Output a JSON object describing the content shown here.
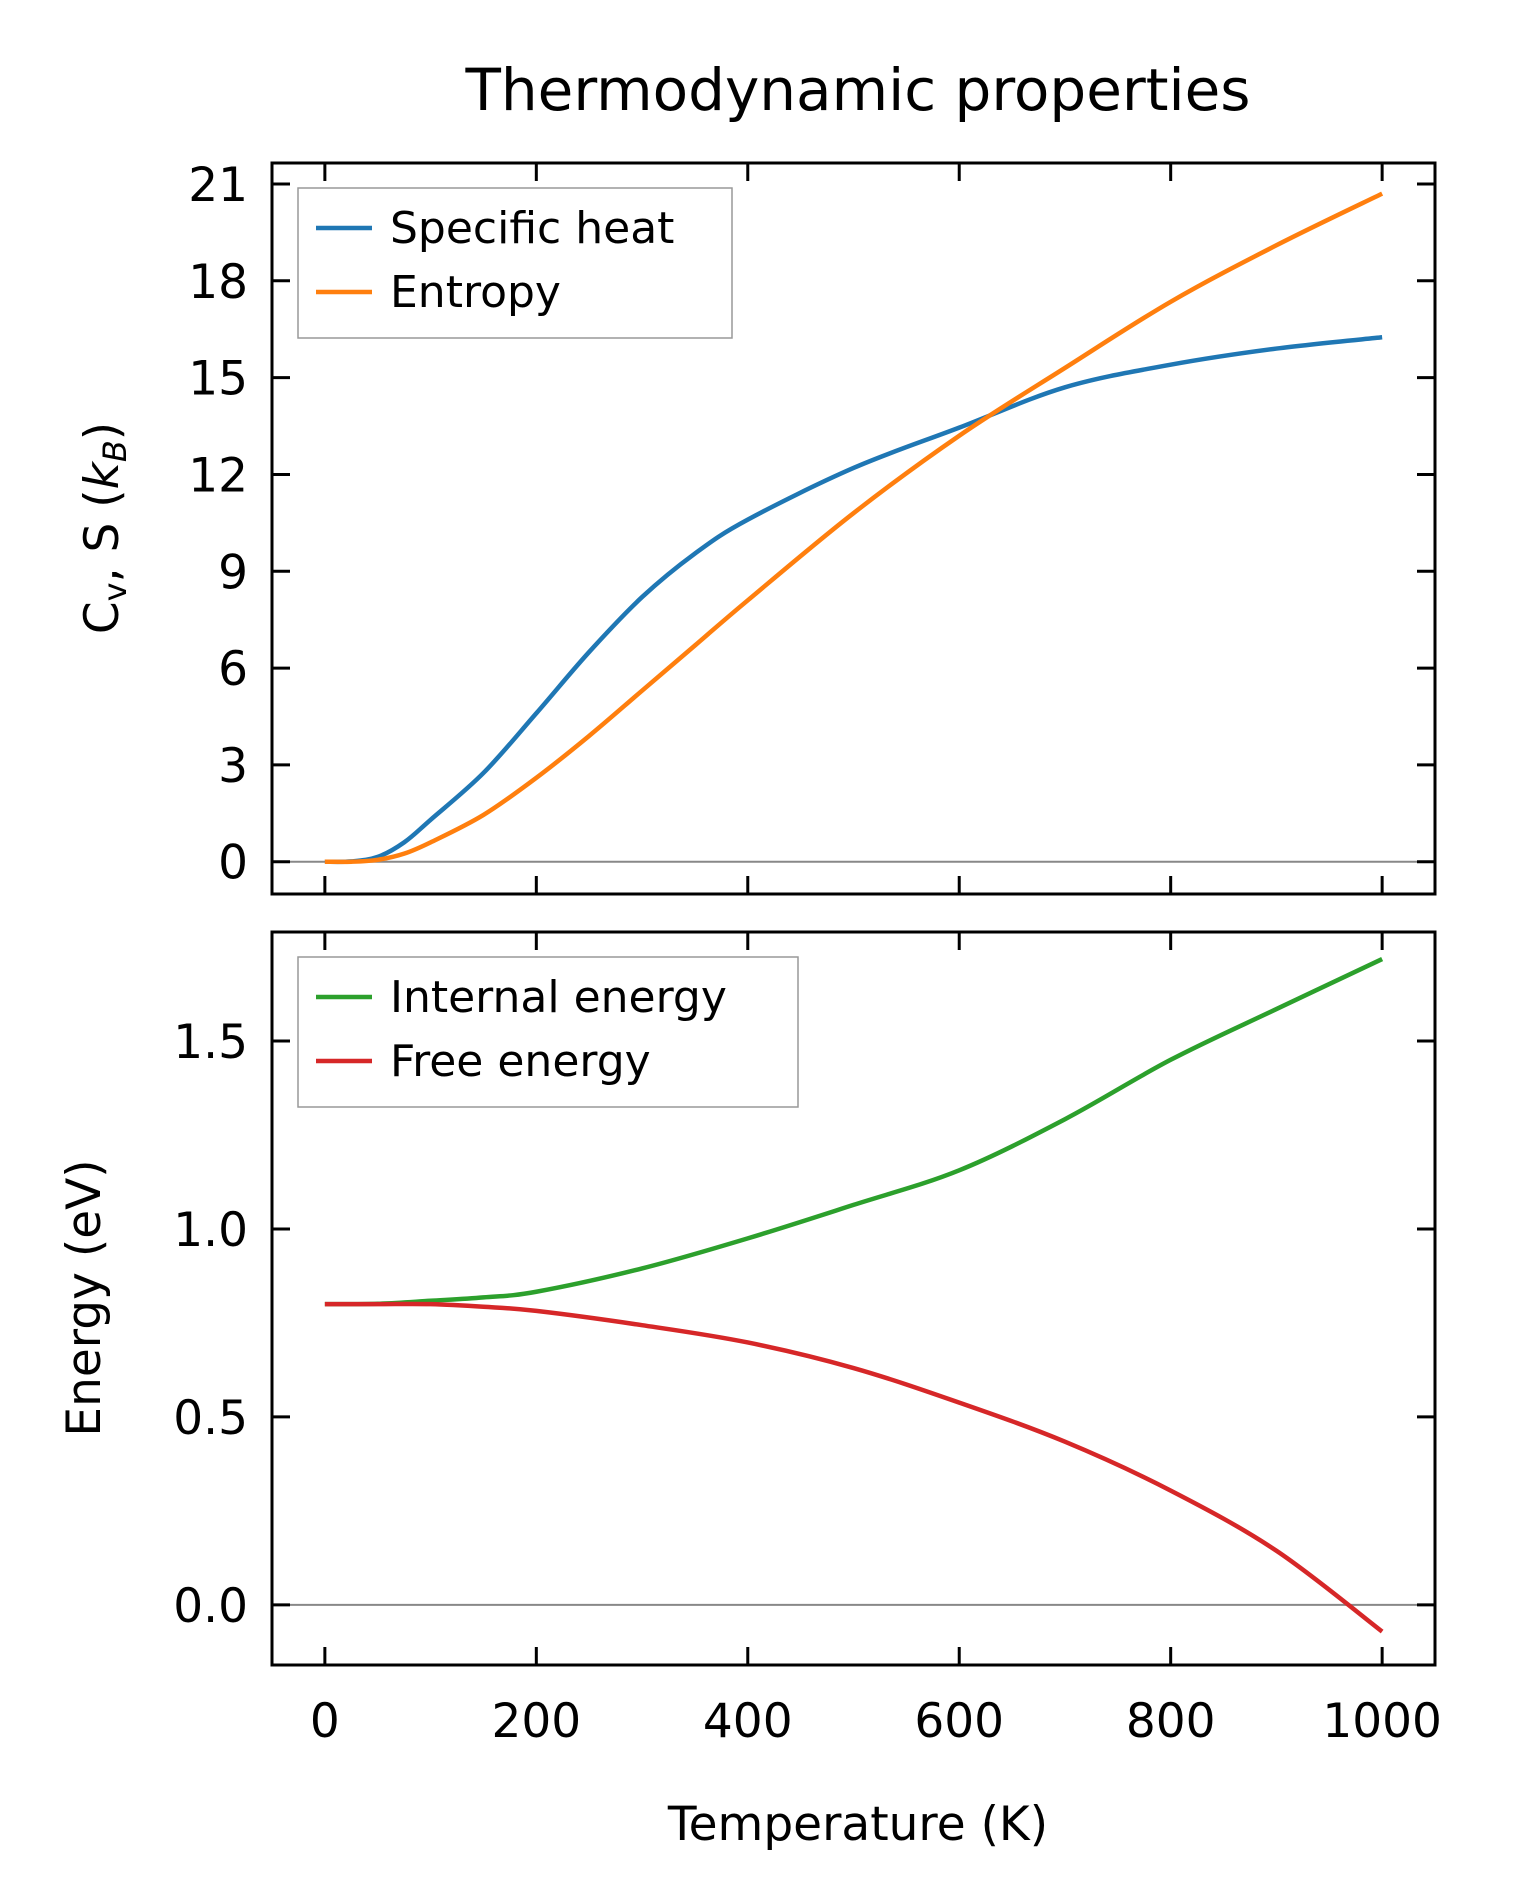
{
  "chart_data": [
    {
      "type": "line",
      "panel": "top",
      "title": "Thermodynamic properties",
      "xlabel": "",
      "ylabel_parts": {
        "main": "C",
        "sub": "v",
        "mid": ", S (",
        "k": "k",
        "ksub": "B",
        "end": ")"
      },
      "ylabel": "Cv, S (kB)",
      "xlim": [
        -50,
        1050
      ],
      "ylim": [
        -1.0,
        21.65
      ],
      "xticks": [
        0,
        200,
        400,
        600,
        800,
        1000
      ],
      "yticks": [
        0,
        3,
        6,
        9,
        12,
        15,
        18,
        21
      ],
      "ytick_labels": [
        "0",
        "3",
        "6",
        "9",
        "12",
        "15",
        "18",
        "21"
      ],
      "show_xtick_labels": false,
      "zero_line": true,
      "grid": false,
      "legend_position": "top-left",
      "x": [
        0,
        25,
        50,
        75,
        100,
        150,
        200,
        250,
        300,
        350,
        400,
        500,
        600,
        700,
        800,
        900,
        1000
      ],
      "series": [
        {
          "name": "Specific heat",
          "color": "#1f77b4",
          "values": [
            0,
            0.01,
            0.15,
            0.6,
            1.3,
            2.75,
            4.6,
            6.5,
            8.2,
            9.55,
            10.6,
            12.2,
            13.45,
            14.7,
            15.4,
            15.9,
            16.25
          ]
        },
        {
          "name": "Entropy",
          "color": "#ff7f0e",
          "values": [
            0,
            0.0,
            0.06,
            0.25,
            0.6,
            1.45,
            2.6,
            3.9,
            5.3,
            6.7,
            8.1,
            10.8,
            13.2,
            15.3,
            17.35,
            19.1,
            20.7
          ]
        }
      ]
    },
    {
      "type": "line",
      "panel": "bottom",
      "title": "",
      "xlabel": "Temperature (K)",
      "ylabel": "Energy (eV)",
      "xlim": [
        -50,
        1050
      ],
      "ylim": [
        -0.16,
        1.79
      ],
      "xticks": [
        0,
        200,
        400,
        600,
        800,
        1000
      ],
      "xtick_labels": [
        "0",
        "200",
        "400",
        "600",
        "800",
        "1000"
      ],
      "yticks": [
        0.0,
        0.5,
        1.0,
        1.5
      ],
      "ytick_labels": [
        "0.0",
        "0.5",
        "1.0",
        "1.5"
      ],
      "show_xtick_labels": true,
      "zero_line": true,
      "grid": false,
      "legend_position": "top-left",
      "x": [
        0,
        50,
        100,
        150,
        200,
        300,
        400,
        500,
        600,
        700,
        800,
        900,
        1000
      ],
      "series": [
        {
          "name": "Internal energy",
          "color": "#2ca02c",
          "values": [
            0.8,
            0.801,
            0.809,
            0.818,
            0.833,
            0.895,
            0.975,
            1.064,
            1.156,
            1.292,
            1.45,
            1.585,
            1.718
          ]
        },
        {
          "name": "Free energy",
          "color": "#d62728",
          "values": [
            0.8,
            0.8,
            0.8,
            0.793,
            0.782,
            0.744,
            0.698,
            0.63,
            0.538,
            0.434,
            0.304,
            0.144,
            -0.071
          ]
        }
      ]
    }
  ]
}
